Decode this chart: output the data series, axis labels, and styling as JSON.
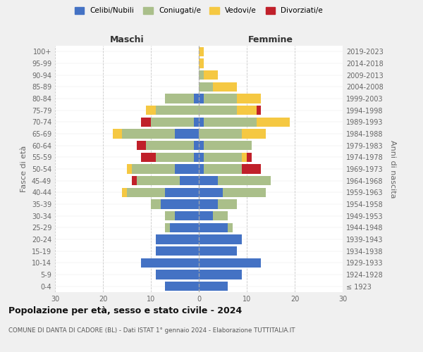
{
  "age_groups": [
    "100+",
    "95-99",
    "90-94",
    "85-89",
    "80-84",
    "75-79",
    "70-74",
    "65-69",
    "60-64",
    "55-59",
    "50-54",
    "45-49",
    "40-44",
    "35-39",
    "30-34",
    "25-29",
    "20-24",
    "15-19",
    "10-14",
    "5-9",
    "0-4"
  ],
  "birth_years": [
    "≤ 1923",
    "1924-1928",
    "1929-1933",
    "1934-1938",
    "1939-1943",
    "1944-1948",
    "1949-1953",
    "1954-1958",
    "1959-1963",
    "1964-1968",
    "1969-1973",
    "1974-1978",
    "1979-1983",
    "1984-1988",
    "1989-1993",
    "1994-1998",
    "1999-2003",
    "2004-2008",
    "2009-2013",
    "2014-2018",
    "2019-2023"
  ],
  "male": {
    "celibi": [
      0,
      0,
      0,
      0,
      1,
      0,
      1,
      5,
      1,
      1,
      5,
      4,
      7,
      8,
      5,
      6,
      9,
      9,
      12,
      9,
      7
    ],
    "coniugati": [
      0,
      0,
      0,
      0,
      6,
      9,
      9,
      11,
      10,
      8,
      9,
      9,
      8,
      2,
      2,
      1,
      0,
      0,
      0,
      0,
      0
    ],
    "vedovi": [
      0,
      0,
      0,
      0,
      0,
      2,
      0,
      2,
      0,
      0,
      1,
      0,
      1,
      0,
      0,
      0,
      0,
      0,
      0,
      0,
      0
    ],
    "divorziati": [
      0,
      0,
      0,
      0,
      0,
      0,
      2,
      0,
      2,
      3,
      0,
      1,
      0,
      0,
      0,
      0,
      0,
      0,
      0,
      0,
      0
    ]
  },
  "female": {
    "nubili": [
      0,
      0,
      0,
      0,
      1,
      0,
      1,
      0,
      1,
      1,
      1,
      4,
      5,
      4,
      3,
      6,
      9,
      8,
      13,
      9,
      6
    ],
    "coniugate": [
      0,
      0,
      1,
      3,
      7,
      8,
      11,
      9,
      10,
      8,
      8,
      11,
      9,
      4,
      3,
      1,
      0,
      0,
      0,
      0,
      0
    ],
    "vedove": [
      1,
      1,
      3,
      5,
      5,
      4,
      7,
      5,
      0,
      1,
      0,
      0,
      0,
      0,
      0,
      0,
      0,
      0,
      0,
      0,
      0
    ],
    "divorziate": [
      0,
      0,
      0,
      0,
      0,
      1,
      0,
      0,
      0,
      1,
      4,
      0,
      0,
      0,
      0,
      0,
      0,
      0,
      0,
      0,
      0
    ]
  },
  "colors": {
    "celibi": "#4472C4",
    "coniugati": "#AABF8A",
    "vedovi": "#F5C842",
    "divorziati": "#C0202A"
  },
  "title": "Popolazione per età, sesso e stato civile - 2024",
  "subtitle": "COMUNE DI DANTA DI CADORE (BL) - Dati ISTAT 1° gennaio 2024 - Elaborazione TUTTITALIA.IT",
  "xlabel_left": "Maschi",
  "xlabel_right": "Femmine",
  "ylabel_left": "Fasce di età",
  "ylabel_right": "Anni di nascita",
  "xlim": 30,
  "bg_color": "#f0f0f0",
  "plot_bg": "#ffffff",
  "legend_labels": [
    "Celibi/Nubili",
    "Coniugati/e",
    "Vedovi/e",
    "Divorziati/e"
  ]
}
